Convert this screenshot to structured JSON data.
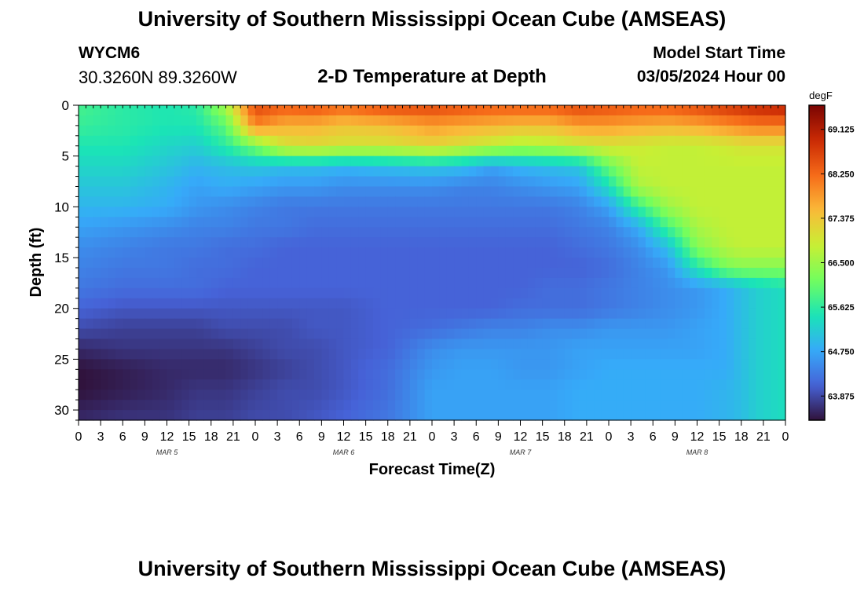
{
  "header": {
    "title": "University of Southern Mississippi Ocean Cube (AMSEAS)",
    "station_id": "WYCM6",
    "lat_lon": "30.3260N  89.3260W",
    "subtitle": "2-D Temperature at Depth",
    "model_start_label": "Model Start Time",
    "model_start_value": "03/05/2024 Hour 00"
  },
  "footer": {
    "title": "University of Southern Mississippi Ocean Cube (AMSEAS)"
  },
  "chart_data": {
    "type": "heatmap",
    "title": "2-D Temperature at Depth",
    "xlabel": "Forecast Time(Z)",
    "ylabel": "Depth (ft)",
    "x_tick_labels": [
      "0",
      "3",
      "6",
      "9",
      "12",
      "15",
      "18",
      "21",
      "0",
      "3",
      "6",
      "9",
      "12",
      "15",
      "18",
      "21",
      "0",
      "3",
      "6",
      "9",
      "12",
      "15",
      "18",
      "21",
      "0",
      "3",
      "6",
      "9",
      "12",
      "15",
      "18",
      "21",
      "0"
    ],
    "x_hours_range": [
      0,
      96
    ],
    "day_labels": [
      {
        "label": "MAR 5",
        "hour": 12
      },
      {
        "label": "MAR 6",
        "hour": 36
      },
      {
        "label": "MAR 7",
        "hour": 60
      },
      {
        "label": "MAR 8",
        "hour": 84
      }
    ],
    "y_ticks": [
      0,
      5,
      10,
      15,
      20,
      25,
      30
    ],
    "ylim": [
      0,
      31
    ],
    "y_inverted": true,
    "colorbar": {
      "unit": "degF",
      "min": 63.4,
      "max": 69.6,
      "tick_values": [
        63.875,
        64.75,
        65.625,
        66.5,
        67.375,
        68.25,
        69.125
      ],
      "tick_labels": [
        "63.875",
        "64.750",
        "65.625",
        "66.500",
        "67.375",
        "68.250",
        "69.125"
      ],
      "colormap": [
        "#30123b",
        "#4662d7",
        "#36aaf9",
        "#1ae4b6",
        "#72fe5e",
        "#c8ef34",
        "#faba39",
        "#f66b19",
        "#ca2a04",
        "#7a0403"
      ]
    },
    "grid_hours": [
      0,
      6,
      12,
      16,
      20,
      24,
      28,
      32,
      36,
      42,
      48,
      52,
      56,
      60,
      64,
      68,
      72,
      76,
      80,
      84,
      88,
      90,
      92,
      96
    ],
    "grid_depths": [
      0,
      2,
      4,
      6,
      8,
      10,
      12,
      14,
      16,
      18,
      20,
      22,
      24,
      26,
      28,
      31
    ],
    "values": [
      [
        65.8,
        65.6,
        65.5,
        65.6,
        66.6,
        68.6,
        68.4,
        68.5,
        68.3,
        68.6,
        68.6,
        68.5,
        68.4,
        68.4,
        68.4,
        68.6,
        68.5,
        68.4,
        68.4,
        68.6,
        68.8,
        68.9,
        69.0,
        69.1
      ],
      [
        65.7,
        65.6,
        65.5,
        65.5,
        66.0,
        68.0,
        67.6,
        67.6,
        67.4,
        67.5,
        67.8,
        67.7,
        67.6,
        67.5,
        67.5,
        67.8,
        67.8,
        67.7,
        67.6,
        67.7,
        67.9,
        68.0,
        68.1,
        68.1
      ],
      [
        65.5,
        65.5,
        65.3,
        65.2,
        65.6,
        66.2,
        67.0,
        67.1,
        67.0,
        67.0,
        67.2,
        67.0,
        66.8,
        66.6,
        66.7,
        66.9,
        67.0,
        66.9,
        66.8,
        66.8,
        66.9,
        67.0,
        67.0,
        67.0
      ],
      [
        65.3,
        65.3,
        65.1,
        64.9,
        65.0,
        65.1,
        65.0,
        65.0,
        64.9,
        65.0,
        65.1,
        65.0,
        64.7,
        64.9,
        65.0,
        65.1,
        66.1,
        66.8,
        66.8,
        66.8,
        66.8,
        66.8,
        66.8,
        66.8
      ],
      [
        65.1,
        65.1,
        64.9,
        64.7,
        64.8,
        64.7,
        64.6,
        64.6,
        64.5,
        64.5,
        64.5,
        64.4,
        64.4,
        64.5,
        64.6,
        64.7,
        65.4,
        66.6,
        66.8,
        66.8,
        66.8,
        66.8,
        66.8,
        66.8
      ],
      [
        64.9,
        64.9,
        64.8,
        64.6,
        64.5,
        64.4,
        64.3,
        64.3,
        64.3,
        64.3,
        64.3,
        64.3,
        64.3,
        64.3,
        64.3,
        64.4,
        64.7,
        65.7,
        66.5,
        66.8,
        66.8,
        66.8,
        66.8,
        66.8
      ],
      [
        64.7,
        64.6,
        64.5,
        64.4,
        64.4,
        64.3,
        64.3,
        64.2,
        64.2,
        64.2,
        64.2,
        64.2,
        64.2,
        64.2,
        64.2,
        64.3,
        64.4,
        64.8,
        65.8,
        66.6,
        66.8,
        66.8,
        66.8,
        66.8
      ],
      [
        64.5,
        64.4,
        64.3,
        64.3,
        64.2,
        64.2,
        64.1,
        64.1,
        64.1,
        64.1,
        64.1,
        64.1,
        64.1,
        64.1,
        64.1,
        64.2,
        64.3,
        64.5,
        65.0,
        66.3,
        66.7,
        66.8,
        66.8,
        66.8
      ],
      [
        64.4,
        64.3,
        64.3,
        64.2,
        64.2,
        64.1,
        64.1,
        64.1,
        64.1,
        64.1,
        64.1,
        64.1,
        64.1,
        64.1,
        64.1,
        64.1,
        64.2,
        64.4,
        64.6,
        65.5,
        66.2,
        66.3,
        66.3,
        66.3
      ],
      [
        64.3,
        64.2,
        64.2,
        64.2,
        64.1,
        64.1,
        64.1,
        64.1,
        64.1,
        64.1,
        64.1,
        64.1,
        64.1,
        64.1,
        64.2,
        64.2,
        64.3,
        64.4,
        64.5,
        64.6,
        64.8,
        65.0,
        65.2,
        65.4
      ],
      [
        64.1,
        64.0,
        64.0,
        64.0,
        64.0,
        64.0,
        64.0,
        64.0,
        64.0,
        64.1,
        64.1,
        64.1,
        64.1,
        64.2,
        64.2,
        64.2,
        64.3,
        64.4,
        64.5,
        64.6,
        64.8,
        65.0,
        65.2,
        65.4
      ],
      [
        63.9,
        63.8,
        63.8,
        63.8,
        63.9,
        63.9,
        63.9,
        64.0,
        64.0,
        64.1,
        64.2,
        64.3,
        64.4,
        64.4,
        64.5,
        64.5,
        64.6,
        64.6,
        64.6,
        64.7,
        64.8,
        65.0,
        65.2,
        65.4
      ],
      [
        63.6,
        63.7,
        63.7,
        63.7,
        63.7,
        63.8,
        63.9,
        63.9,
        64.0,
        64.1,
        64.5,
        64.6,
        64.6,
        64.6,
        64.6,
        64.7,
        64.7,
        64.7,
        64.7,
        64.7,
        64.8,
        65.0,
        65.2,
        65.4
      ],
      [
        63.4,
        63.5,
        63.6,
        63.6,
        63.6,
        63.7,
        63.8,
        63.9,
        64.0,
        64.2,
        64.6,
        64.7,
        64.7,
        64.6,
        64.6,
        64.7,
        64.8,
        64.8,
        64.8,
        64.8,
        64.8,
        65.0,
        65.2,
        65.4
      ],
      [
        63.4,
        63.5,
        63.6,
        63.7,
        63.7,
        63.8,
        63.9,
        63.9,
        64.0,
        64.2,
        64.7,
        64.7,
        64.7,
        64.7,
        64.7,
        64.8,
        64.8,
        64.8,
        64.8,
        64.8,
        64.9,
        65.0,
        65.2,
        65.4
      ],
      [
        63.6,
        63.7,
        63.7,
        63.8,
        63.8,
        63.9,
        63.9,
        64.0,
        64.1,
        64.3,
        64.7,
        64.7,
        64.7,
        64.7,
        64.7,
        64.8,
        64.8,
        64.8,
        64.8,
        64.8,
        64.9,
        65.0,
        65.2,
        65.4
      ]
    ]
  }
}
